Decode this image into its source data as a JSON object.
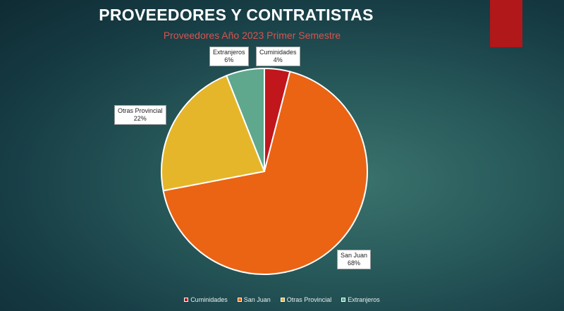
{
  "header": {
    "title": "PROVEEDORES Y CONTRATISTAS",
    "subtitle": "Proveedores Año  2023 Primer Semestre"
  },
  "chart_data": {
    "type": "pie",
    "title": "Proveedores Año  2023 Primer Semestre",
    "categories": [
      "Cuminidades",
      "San Juan",
      "Otras Provincial",
      "Extranjeros"
    ],
    "values": [
      4,
      68,
      22,
      6
    ],
    "value_labels": [
      "4%",
      "68%",
      "22%",
      "6%"
    ],
    "colors": [
      "#c0161c",
      "#ea6414",
      "#e6b62a",
      "#5fa88e"
    ],
    "slice_border_color": "#ffffff",
    "legend_position": "bottom",
    "start_angle_deg": 0,
    "direction": "clockwise"
  }
}
